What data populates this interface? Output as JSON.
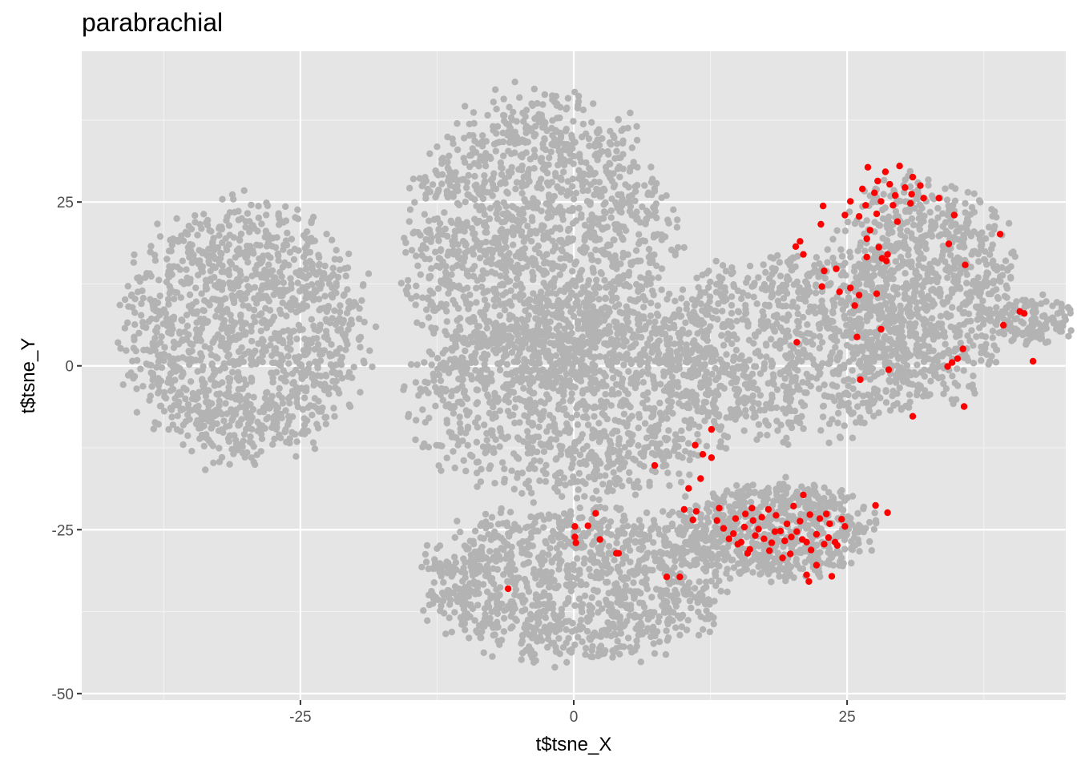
{
  "chart_data": {
    "type": "scatter",
    "title": "parabrachial",
    "xlabel": "t$tsne_X",
    "ylabel": "t$tsne_Y",
    "xlim": [
      -45,
      45
    ],
    "ylim": [
      -51,
      48
    ],
    "x_ticks": [
      -25,
      0,
      25
    ],
    "x_tick_labels": [
      "-25",
      "0",
      "25"
    ],
    "y_ticks": [
      -50,
      -25,
      0,
      25
    ],
    "y_tick_labels": [
      "-50",
      "-25",
      "0",
      "25"
    ],
    "grid": true,
    "legend": "none",
    "colors": {
      "panel_background": "#e5e5e5",
      "grid_major": "#ffffff",
      "grid_minor": "#f2f2f2",
      "background_points": "#b3b3b3",
      "highlight_points": "#ff0000"
    },
    "background_clusters": [
      {
        "name": "left",
        "cx": -30,
        "cy": 5,
        "rx": 12,
        "ry": 21,
        "n": 1300
      },
      {
        "name": "center-top",
        "cx": -3,
        "cy": 18,
        "rx": 13,
        "ry": 25,
        "n": 1600
      },
      {
        "name": "center-mid",
        "cx": 0,
        "cy": -5,
        "rx": 16,
        "ry": 16,
        "n": 1100
      },
      {
        "name": "bottom",
        "cx": 0,
        "cy": -33,
        "rx": 15,
        "ry": 13,
        "n": 1100
      },
      {
        "name": "right-lower",
        "cx": 18,
        "cy": -25,
        "rx": 10,
        "ry": 8,
        "n": 700
      },
      {
        "name": "right-middle",
        "cx": 20,
        "cy": 3,
        "rx": 14,
        "ry": 15,
        "n": 900
      },
      {
        "name": "upper-right",
        "cx": 32,
        "cy": 12,
        "rx": 9,
        "ry": 18,
        "n": 900
      },
      {
        "name": "far-right",
        "cx": 42,
        "cy": 7,
        "rx": 4,
        "ry": 4,
        "n": 120
      }
    ],
    "highlight_points": [
      [
        26.9,
        30.3
      ],
      [
        28.5,
        29.6
      ],
      [
        29.8,
        30.5
      ],
      [
        31.0,
        28.8
      ],
      [
        27.8,
        28.2
      ],
      [
        28.9,
        27.7
      ],
      [
        30.3,
        27.2
      ],
      [
        31.7,
        27.5
      ],
      [
        26.4,
        27.0
      ],
      [
        27.5,
        26.4
      ],
      [
        29.4,
        26.0
      ],
      [
        30.9,
        26.2
      ],
      [
        32.0,
        25.6
      ],
      [
        25.3,
        25.1
      ],
      [
        26.7,
        24.5
      ],
      [
        28.1,
        25.1
      ],
      [
        29.2,
        24.5
      ],
      [
        30.8,
        24.8
      ],
      [
        24.8,
        23.0
      ],
      [
        26.1,
        22.8
      ],
      [
        27.7,
        23.2
      ],
      [
        29.6,
        22.0
      ],
      [
        33.4,
        25.6
      ],
      [
        34.8,
        23.0
      ],
      [
        22.8,
        24.4
      ],
      [
        22.6,
        21.6
      ],
      [
        20.7,
        19.0
      ],
      [
        20.3,
        18.2
      ],
      [
        21.0,
        17.0
      ],
      [
        26.8,
        19.4
      ],
      [
        27.1,
        20.7
      ],
      [
        27.9,
        18.1
      ],
      [
        28.7,
        17.0
      ],
      [
        28.2,
        16.4
      ],
      [
        34.3,
        18.6
      ],
      [
        35.8,
        15.4
      ],
      [
        39.0,
        20.1
      ],
      [
        22.9,
        14.5
      ],
      [
        24.0,
        14.8
      ],
      [
        26.8,
        16.6
      ],
      [
        28.6,
        16.0
      ],
      [
        22.7,
        12.1
      ],
      [
        24.3,
        11.3
      ],
      [
        25.3,
        11.9
      ],
      [
        26.1,
        10.8
      ],
      [
        25.7,
        9.2
      ],
      [
        27.7,
        11.0
      ],
      [
        40.8,
        8.3
      ],
      [
        41.2,
        8.0
      ],
      [
        39.3,
        6.2
      ],
      [
        28.1,
        5.6
      ],
      [
        25.9,
        4.4
      ],
      [
        20.4,
        3.6
      ],
      [
        35.6,
        2.6
      ],
      [
        35.1,
        1.1
      ],
      [
        34.6,
        0.5
      ],
      [
        34.2,
        -0.1
      ],
      [
        42.0,
        0.7
      ],
      [
        28.8,
        -0.6
      ],
      [
        26.2,
        -2.1
      ],
      [
        35.7,
        -6.2
      ],
      [
        31.0,
        -7.7
      ],
      [
        12.6,
        -9.7
      ],
      [
        11.1,
        -12.1
      ],
      [
        11.8,
        -13.5
      ],
      [
        12.6,
        -14.0
      ],
      [
        7.4,
        -15.2
      ],
      [
        11.6,
        -17.2
      ],
      [
        10.5,
        -18.7
      ],
      [
        10.1,
        -21.9
      ],
      [
        11.2,
        -22.2
      ],
      [
        10.9,
        -23.5
      ],
      [
        27.6,
        -21.3
      ],
      [
        28.7,
        -22.4
      ],
      [
        2.0,
        -22.5
      ],
      [
        0.1,
        -24.5
      ],
      [
        1.3,
        -24.4
      ],
      [
        0.1,
        -26.1
      ],
      [
        0.2,
        -27.0
      ],
      [
        2.4,
        -26.5
      ],
      [
        3.9,
        -28.6
      ],
      [
        4.1,
        -28.6
      ],
      [
        8.5,
        -32.2
      ],
      [
        9.7,
        -32.2
      ],
      [
        -6.0,
        -34.0
      ],
      [
        22.2,
        -30.4
      ],
      [
        21.3,
        -31.9
      ],
      [
        23.6,
        -32.1
      ],
      [
        21.5,
        -32.9
      ],
      [
        21.0,
        -19.7
      ],
      [
        14.8,
        -23.3
      ],
      [
        13.3,
        -21.7
      ],
      [
        15.7,
        -22.6
      ],
      [
        16.3,
        -21.7
      ],
      [
        17.2,
        -23.1
      ],
      [
        18.5,
        -22.8
      ],
      [
        19.5,
        -24.1
      ],
      [
        20.7,
        -23.7
      ],
      [
        21.6,
        -22.7
      ],
      [
        22.5,
        -23.3
      ],
      [
        23.4,
        -24.1
      ],
      [
        24.5,
        -23.4
      ],
      [
        13.7,
        -24.8
      ],
      [
        14.6,
        -25.6
      ],
      [
        15.6,
        -24.6
      ],
      [
        16.6,
        -25.9
      ],
      [
        17.4,
        -26.4
      ],
      [
        18.4,
        -25.3
      ],
      [
        19.3,
        -26.7
      ],
      [
        20.4,
        -25.3
      ],
      [
        21.3,
        -26.9
      ],
      [
        22.2,
        -25.7
      ],
      [
        23.3,
        -26.2
      ],
      [
        24.1,
        -27.4
      ],
      [
        15.0,
        -27.2
      ],
      [
        16.1,
        -28.0
      ],
      [
        17.9,
        -28.2
      ],
      [
        19.8,
        -28.7
      ],
      [
        21.7,
        -28.1
      ],
      [
        23.9,
        -26.9
      ],
      [
        14.2,
        -26.4
      ],
      [
        15.3,
        -26.9
      ],
      [
        16.9,
        -24.9
      ],
      [
        18.1,
        -27.0
      ],
      [
        19.9,
        -26.1
      ],
      [
        22.9,
        -27.2
      ],
      [
        13.1,
        -23.6
      ],
      [
        17.8,
        -21.9
      ],
      [
        20.1,
        -21.4
      ],
      [
        23.1,
        -22.6
      ],
      [
        24.8,
        -24.5
      ],
      [
        18.9,
        -25.2
      ],
      [
        15.9,
        -28.6
      ],
      [
        19.1,
        -29.3
      ],
      [
        20.9,
        -26.5
      ],
      [
        16.4,
        -23.6
      ]
    ]
  }
}
